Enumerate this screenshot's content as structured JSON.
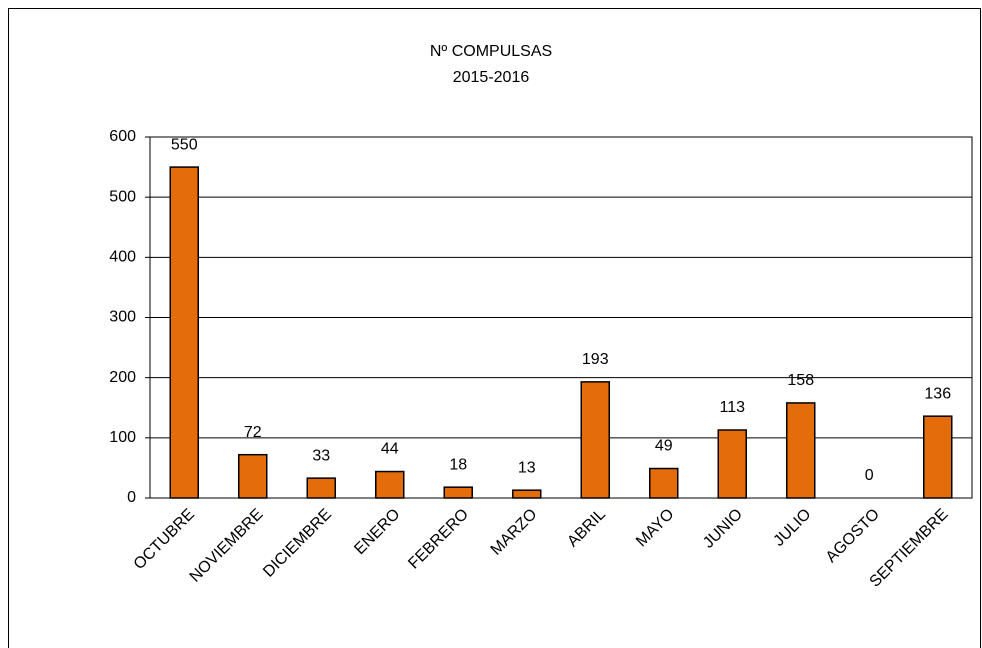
{
  "chart_data": {
    "type": "bar",
    "title": "Nº COMPULSAS",
    "subtitle": "2015-2016",
    "categories": [
      "OCTUBRE",
      "NOVIEMBRE",
      "DICIEMBRE",
      "ENERO",
      "FEBRERO",
      "MARZO",
      "ABRIL",
      "MAYO",
      "JUNIO",
      "JULIO",
      "AGOSTO",
      "SEPTIEMBRE"
    ],
    "values": [
      550,
      72,
      33,
      44,
      18,
      13,
      193,
      49,
      113,
      158,
      0,
      136
    ],
    "color": "#e46c0a",
    "ylim": [
      0,
      600
    ],
    "yticks": [
      0,
      100,
      200,
      300,
      400,
      500,
      600
    ],
    "grid": true
  }
}
